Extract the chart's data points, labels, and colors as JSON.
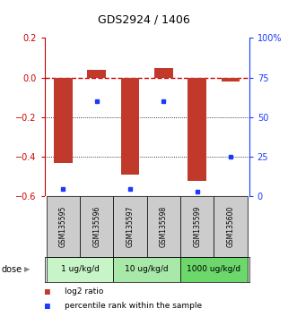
{
  "title": "GDS2924 / 1406",
  "samples": [
    "GSM135595",
    "GSM135596",
    "GSM135597",
    "GSM135598",
    "GSM135599",
    "GSM135600"
  ],
  "log2_ratios": [
    -0.43,
    0.04,
    -0.49,
    0.05,
    -0.52,
    -0.02
  ],
  "percentile_ranks": [
    5,
    60,
    5,
    60,
    3,
    25
  ],
  "bar_color": "#C0392B",
  "dot_color": "#1A3AFF",
  "ylim_left": [
    -0.6,
    0.2
  ],
  "ylim_right": [
    0,
    100
  ],
  "yticks_left": [
    -0.6,
    -0.4,
    -0.2,
    0.0,
    0.2
  ],
  "yticks_right": [
    0,
    25,
    50,
    75,
    100
  ],
  "ytick_labels_right": [
    "0",
    "25",
    "50",
    "75",
    "100%"
  ],
  "dose_groups": [
    {
      "label": "1 ug/kg/d",
      "samples": [
        0,
        1
      ],
      "color": "#C8F5C8"
    },
    {
      "label": "10 ug/kg/d",
      "samples": [
        2,
        3
      ],
      "color": "#A8E8A8"
    },
    {
      "label": "1000 ug/kg/d",
      "samples": [
        4,
        5
      ],
      "color": "#6CD86C"
    }
  ],
  "legend_log2": "log2 ratio",
  "legend_pct": "percentile rank within the sample",
  "dose_label": "dose",
  "dashed_line_color": "#CC0000",
  "hline_color": "black",
  "bar_width": 0.55
}
